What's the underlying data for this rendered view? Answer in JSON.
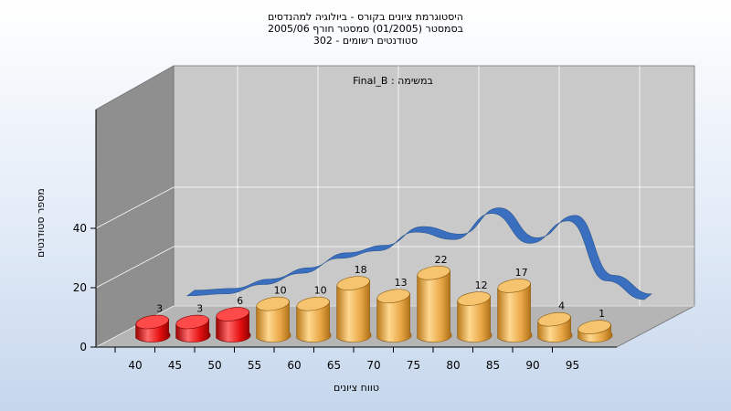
{
  "title_lines": [
    "היסטוגרמת ציונים בקורס - ביולוגיה למהנדסים",
    "בסמסטר  (01/2005)  סמסטר חורף 2005/06",
    "302 - סטודנטים רשומים"
  ],
  "inner_label": "במשימה : Final_B",
  "colors": {
    "fail": "#e51010",
    "pass": "#e8a646",
    "curve": "#3a6fc0",
    "wall_back": "#c9c9c9",
    "wall_left": "#8f8f8f",
    "floor": "#b5b5b5"
  },
  "chart_data": {
    "type": "bar",
    "title": "היסטוגרמת ציונים בקורס - ביולוגיה למהנדסים",
    "xlabel": "טווח ציונים",
    "ylabel": "מספר סטודנטים",
    "ylim": [
      0,
      40
    ],
    "yticks": [
      0,
      20,
      40
    ],
    "x_tick_labels": [
      "40",
      "45",
      "50",
      "55",
      "60",
      "65",
      "70",
      "75",
      "80",
      "85",
      "90",
      "95"
    ],
    "categories": [
      "40-45",
      "45-50",
      "50-55",
      "55-60",
      "60-65",
      "65-70",
      "70-75",
      "75-80",
      "80-85",
      "85-90",
      "90-95",
      "95-100"
    ],
    "values": [
      3,
      3,
      6,
      10,
      10,
      18,
      13,
      22,
      12,
      17,
      4,
      1
    ],
    "fail_count": 3,
    "curve": [
      2,
      2.5,
      5,
      8,
      12,
      14,
      19,
      17,
      24,
      16,
      22,
      6,
      1
    ]
  }
}
